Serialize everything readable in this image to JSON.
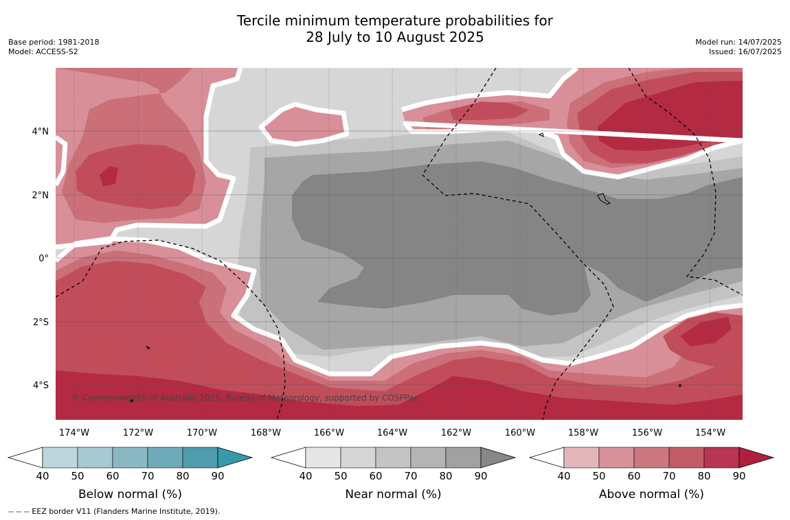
{
  "title": {
    "line1": "Tercile minimum temperature probabilities for",
    "line2": "28 July to 10 August 2025"
  },
  "meta_left": [
    "Base period: 1981-2018",
    "Model: ACCESS-S2"
  ],
  "meta_right": [
    "Model run: 14/07/2025",
    "Issued: 16/07/2025"
  ],
  "map": {
    "lon_labels": [
      "174°W",
      "172°W",
      "170°W",
      "168°W",
      "166°W",
      "164°W",
      "162°W",
      "160°W",
      "158°W",
      "156°W",
      "154°W"
    ],
    "lat_labels": [
      "4°N",
      "2°N",
      "0°",
      "2°S",
      "4°S"
    ],
    "copyright": "© Commonwealth of Australia 2025, Bureau of Meteorology, supported by COSPPac",
    "colors": {
      "near": [
        "#d6d6d6",
        "#c3c3c3",
        "#a6a6a6",
        "#858585"
      ],
      "above": [
        "#d88f97",
        "#cb6f79",
        "#c14d5b",
        "#b32a42"
      ]
    }
  },
  "legends": [
    {
      "label": "Below normal (%)",
      "ticks": [
        "40",
        "50",
        "60",
        "70",
        "80",
        "90"
      ],
      "colors": [
        "#bcd6dd",
        "#a7c9cf",
        "#8bb8c3",
        "#6eaab8",
        "#4e9cac",
        "#3899ad"
      ]
    },
    {
      "label": "Near normal (%)",
      "ticks": [
        "40",
        "50",
        "60",
        "70",
        "80",
        "90"
      ],
      "colors": [
        "#e6e6e6",
        "#d6d6d6",
        "#c4c4c4",
        "#b4b4b4",
        "#a1a1a1",
        "#878787"
      ]
    },
    {
      "label": "Above normal (%)",
      "ticks": [
        "40",
        "50",
        "60",
        "70",
        "80",
        "90"
      ],
      "colors": [
        "#e3b6bc",
        "#d8929b",
        "#cc7780",
        "#c35c69",
        "#b83651",
        "#b01f3e"
      ]
    }
  ],
  "footnote": "--  --  -- EEZ border V11 (Flanders Marine Institute, 2019)."
}
